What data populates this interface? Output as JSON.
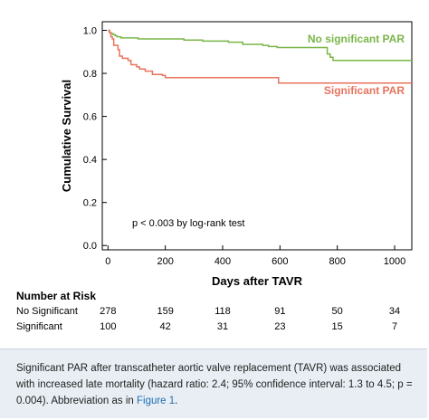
{
  "chart_data": {
    "type": "line",
    "title": "",
    "xlabel": "Days after TAVR",
    "ylabel": "Cumulative Survival",
    "xlim": [
      -20,
      1060
    ],
    "ylim": [
      -0.02,
      1.04
    ],
    "xticks": [
      0,
      200,
      400,
      600,
      800,
      1000
    ],
    "yticks": [
      0.0,
      0.2,
      0.4,
      0.6,
      0.8,
      1.0
    ],
    "grid": false,
    "annotation": "p < 0.003 by log-rank test",
    "series": [
      {
        "name": "No significant PAR",
        "color": "#7ab648",
        "points": [
          [
            0,
            1.0
          ],
          [
            5,
            0.99
          ],
          [
            10,
            0.985
          ],
          [
            18,
            0.98
          ],
          [
            25,
            0.975
          ],
          [
            32,
            0.97
          ],
          [
            45,
            0.965
          ],
          [
            100,
            0.965
          ],
          [
            105,
            0.96
          ],
          [
            250,
            0.96
          ],
          [
            265,
            0.955
          ],
          [
            330,
            0.95
          ],
          [
            420,
            0.945
          ],
          [
            470,
            0.935
          ],
          [
            540,
            0.93
          ],
          [
            560,
            0.925
          ],
          [
            590,
            0.92
          ],
          [
            760,
            0.92
          ],
          [
            765,
            0.89
          ],
          [
            775,
            0.875
          ],
          [
            785,
            0.86
          ],
          [
            1060,
            0.86
          ]
        ]
      },
      {
        "name": "Significant PAR",
        "color": "#e8735e",
        "points": [
          [
            0,
            1.0
          ],
          [
            5,
            0.99
          ],
          [
            10,
            0.97
          ],
          [
            15,
            0.96
          ],
          [
            20,
            0.93
          ],
          [
            35,
            0.91
          ],
          [
            40,
            0.88
          ],
          [
            50,
            0.87
          ],
          [
            70,
            0.86
          ],
          [
            80,
            0.84
          ],
          [
            100,
            0.83
          ],
          [
            110,
            0.82
          ],
          [
            130,
            0.81
          ],
          [
            155,
            0.795
          ],
          [
            190,
            0.79
          ],
          [
            200,
            0.78
          ],
          [
            590,
            0.78
          ],
          [
            595,
            0.755
          ],
          [
            1060,
            0.755
          ]
        ]
      }
    ],
    "risk_table": {
      "title": "Number at Risk",
      "days": [
        0,
        200,
        400,
        600,
        800,
        1000
      ],
      "rows": [
        {
          "label": "No Significant",
          "values": [
            "278",
            "159",
            "118",
            "91",
            "50",
            "34"
          ]
        },
        {
          "label": "Significant",
          "values": [
            "100",
            "42",
            "31",
            "23",
            "15",
            "7"
          ]
        }
      ]
    }
  },
  "caption": {
    "text_before": "Significant PAR after transcatheter aortic valve replacement (TAVR) was associated with increased late mortality (hazard ratio: 2.4; 95% confidence interval: 1.3 to 4.5; p = 0.004). Abbreviation as in ",
    "link": "Figure 1",
    "text_after": "."
  }
}
